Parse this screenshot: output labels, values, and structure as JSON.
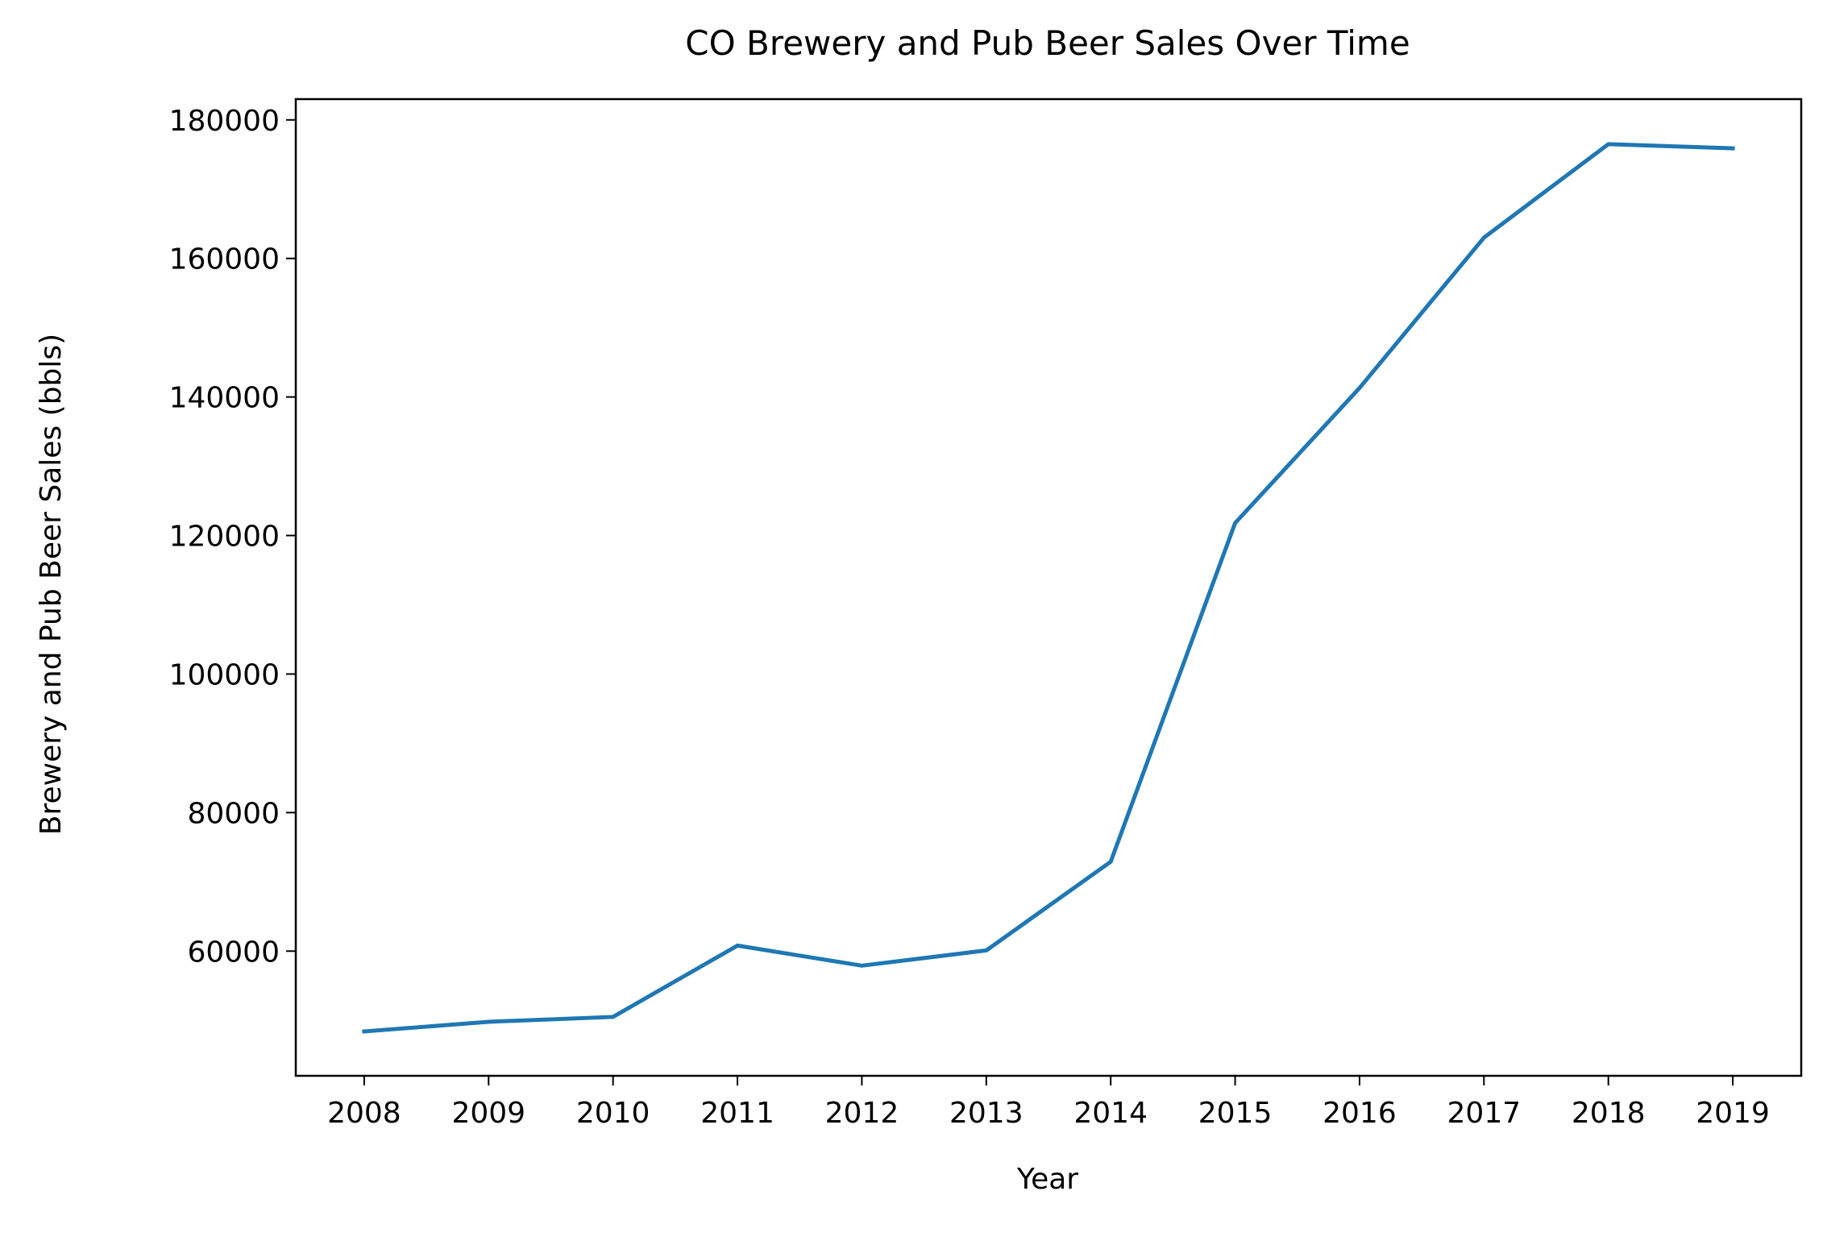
{
  "chart_data": {
    "type": "line",
    "title": "CO Brewery and Pub Beer Sales Over Time",
    "xlabel": "Year",
    "ylabel": "Brewery and Pub Beer Sales (bbls)",
    "x": [
      2008,
      2009,
      2010,
      2011,
      2012,
      2013,
      2014,
      2015,
      2016,
      2017,
      2018,
      2019
    ],
    "series": [
      {
        "values": [
          48400,
          49800,
          50500,
          60800,
          57900,
          60100,
          72900,
          121800,
          141300,
          163000,
          176500,
          175900
        ],
        "color": "#1f77b4"
      }
    ],
    "yticks": [
      60000,
      80000,
      100000,
      120000,
      140000,
      160000,
      180000
    ],
    "ytick_labels": [
      "60000",
      "80000",
      "100000",
      "120000",
      "140000",
      "160000",
      "180000"
    ],
    "xtick_labels": [
      "2008",
      "2009",
      "2010",
      "2011",
      "2012",
      "2013",
      "2014",
      "2015",
      "2016",
      "2017",
      "2018",
      "2019"
    ],
    "xlim": [
      2007.45,
      2019.55
    ],
    "ylim": [
      42000,
      183000
    ],
    "grid": false
  }
}
